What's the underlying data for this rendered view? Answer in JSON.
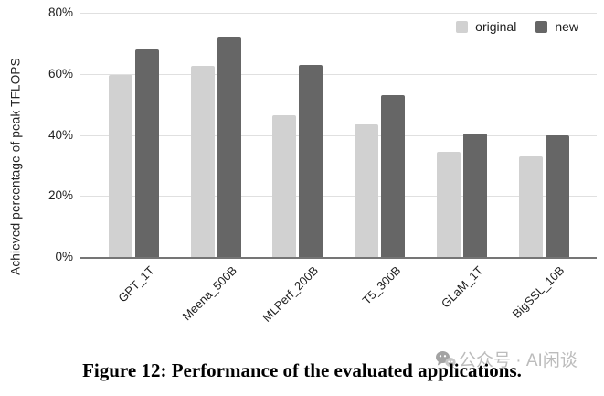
{
  "figure": {
    "caption": "Figure 12: Performance of the evaluated applications."
  },
  "watermark": {
    "icon": "wechat-icon",
    "text": "公众号 · AI闲谈"
  },
  "chart_data": {
    "type": "bar",
    "title": "",
    "ylabel": "Achieved percentage of peak TFLOPS",
    "xlabel": "",
    "ylim": [
      0,
      80
    ],
    "y_ticks": [
      "80%",
      "60%",
      "40%",
      "20%",
      "0%"
    ],
    "grid": true,
    "legend_position": "top-right",
    "categories": [
      "GPT_1T",
      "Meena_500B",
      "MLPerf_200B",
      "T5_300B",
      "GLaM_1T",
      "BigSSL_10B"
    ],
    "series": [
      {
        "name": "original",
        "color": "#d1d1d1",
        "values": [
          59.5,
          62.5,
          46.5,
          43.5,
          34.5,
          33
        ]
      },
      {
        "name": "new",
        "color": "#666666",
        "values": [
          68,
          72,
          63,
          53,
          40.5,
          40
        ]
      }
    ]
  }
}
